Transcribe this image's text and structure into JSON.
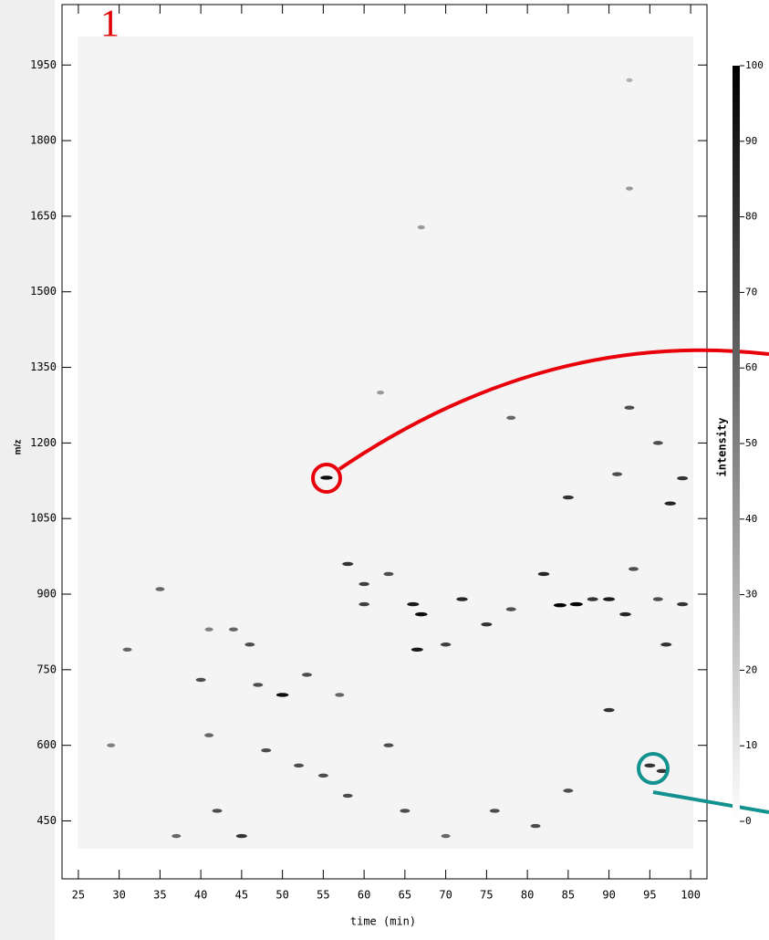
{
  "chart_data": {
    "type": "scatter",
    "annotation": "1",
    "xlabel": "time (min)",
    "ylabel": "m/z",
    "xlim": [
      23,
      102
    ],
    "ylim": [
      335,
      2070
    ],
    "xticks": [
      25,
      30,
      35,
      40,
      45,
      50,
      55,
      60,
      65,
      70,
      75,
      80,
      85,
      90,
      95,
      100
    ],
    "yticks": [
      450,
      600,
      750,
      900,
      1050,
      1200,
      1350,
      1500,
      1650,
      1800,
      1950
    ],
    "cmap": "Greys",
    "x": [
      55.4,
      67,
      85,
      92.5,
      96,
      97.5,
      99,
      91,
      62,
      78,
      58,
      60,
      63,
      66,
      67,
      66.5,
      72,
      75,
      78,
      82,
      84,
      86,
      88,
      90,
      92,
      96,
      97,
      99,
      60,
      70,
      40,
      47,
      50,
      53,
      57,
      46,
      44,
      41,
      31,
      35,
      41,
      48,
      52,
      55,
      58,
      42,
      45,
      63,
      90,
      95,
      96.5,
      85,
      76,
      81,
      70,
      65,
      37,
      29,
      93,
      92.5,
      92.5
    ],
    "y": [
      1131,
      1628,
      1092,
      1270,
      1200,
      1080,
      1130,
      1138,
      1300,
      1250,
      960,
      880,
      940,
      880,
      860,
      790,
      890,
      840,
      870,
      940,
      878,
      880,
      890,
      890,
      860,
      890,
      800,
      880,
      920,
      800,
      730,
      720,
      700,
      740,
      700,
      800,
      830,
      830,
      790,
      910,
      620,
      590,
      560,
      540,
      500,
      470,
      420,
      600,
      670,
      560,
      549,
      510,
      470,
      440,
      420,
      470,
      420,
      600,
      950,
      1705,
      1920
    ],
    "intensity": [
      95,
      40,
      80,
      70,
      70,
      85,
      80,
      70,
      40,
      60,
      80,
      75,
      70,
      90,
      95,
      90,
      85,
      80,
      70,
      85,
      100,
      100,
      80,
      90,
      85,
      70,
      80,
      80,
      75,
      75,
      70,
      70,
      95,
      70,
      60,
      70,
      60,
      50,
      60,
      60,
      60,
      70,
      70,
      70,
      70,
      70,
      80,
      70,
      80,
      80,
      80,
      70,
      70,
      70,
      60,
      70,
      60,
      50,
      70,
      40,
      30
    ],
    "colorbar": {
      "label": "intensity",
      "clim": [
        0,
        100
      ],
      "ticks": [
        0,
        10,
        20,
        30,
        40,
        50,
        60,
        70,
        80,
        90,
        100
      ]
    }
  }
}
